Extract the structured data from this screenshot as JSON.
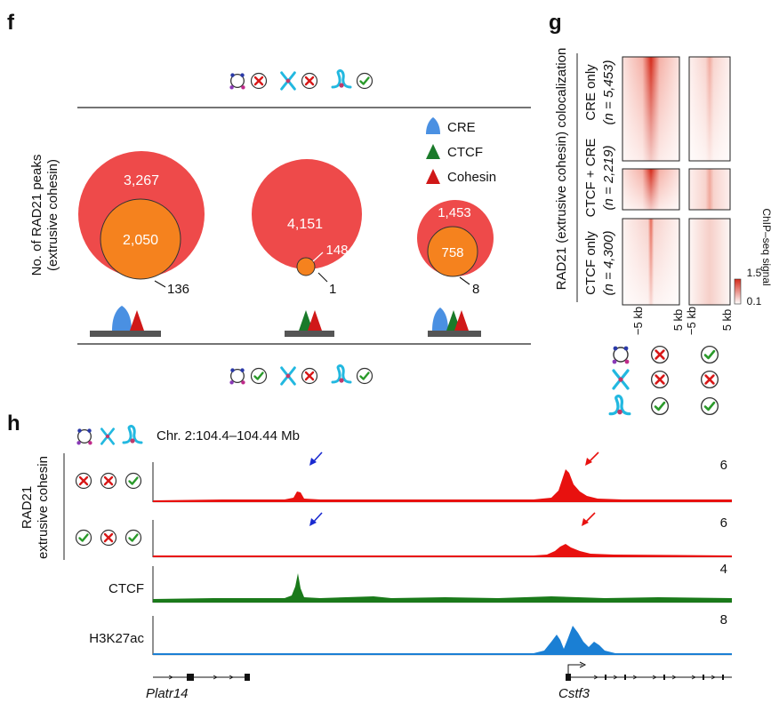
{
  "panels": {
    "f": "f",
    "g": "g",
    "h": "h"
  },
  "legend": {
    "items": [
      {
        "label": "CRE",
        "color": "#4a90e2"
      },
      {
        "label": "CTCF",
        "color": "#1a7a2a"
      },
      {
        "label": "Cohesin",
        "color": "#d01818"
      }
    ]
  },
  "f": {
    "ylabel_line1": "No. of RAD21 peaks",
    "ylabel_line2": "(extrusive cohesin)",
    "groups": [
      {
        "outer": "3,267",
        "inner": "2,050",
        "outside": "136"
      },
      {
        "outer": "4,151",
        "inner": "148",
        "outside": "1"
      },
      {
        "outer": "1,453",
        "inner": "758",
        "outside": "8"
      }
    ]
  },
  "g": {
    "title": "RAD21 (extrusive cohesin) colocalization",
    "rows": [
      {
        "name": "CRE only",
        "n": "(n = 5,453)"
      },
      {
        "name": "CTCF + CRE",
        "n": "(n = 2,219)"
      },
      {
        "name": "CTCF only",
        "n": "(n = 4,300)"
      }
    ],
    "x_left": "−5 kb",
    "x_right": "5 kb",
    "colorbar_label": "ChIP–seq signal",
    "colorbar_max": "1.5",
    "colorbar_min": "0.1",
    "conditions": [
      [
        "cross",
        "check"
      ],
      [
        "cross",
        "cross"
      ],
      [
        "check",
        "check"
      ]
    ],
    "heatmap_color": "#d42a1a"
  },
  "h": {
    "locus": "Chr. 2:104.4–104.44 Mb",
    "group_label_line1": "RAD21",
    "group_label_line2": "extrusive cohesin",
    "tracks": [
      {
        "label": "",
        "max": "6",
        "color": "#e8110f"
      },
      {
        "label": "",
        "max": "6",
        "color": "#e8110f"
      },
      {
        "label": "CTCF",
        "max": "4",
        "color": "#1a7a1a"
      },
      {
        "label": "H3K27ac",
        "max": "8",
        "color": "#1a7fd4"
      }
    ],
    "genes": [
      "Platr14",
      "Cstf3"
    ]
  }
}
